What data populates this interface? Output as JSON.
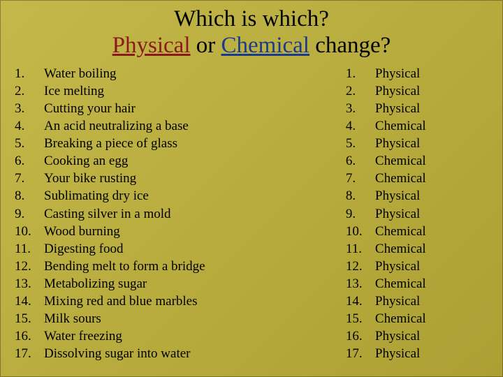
{
  "title": {
    "line1": "Which is which?",
    "physical": "Physical",
    "or": " or ",
    "chemical": "Chemical",
    "change": " change?"
  },
  "left_items": [
    {
      "n": "1.",
      "t": "Water boiling"
    },
    {
      "n": "2.",
      "t": "Ice melting"
    },
    {
      "n": "3.",
      "t": "Cutting your hair"
    },
    {
      "n": "4.",
      "t": "An acid neutralizing a base"
    },
    {
      "n": "5.",
      "t": "Breaking a piece of glass"
    },
    {
      "n": "6.",
      "t": "Cooking an egg"
    },
    {
      "n": "7.",
      "t": "Your bike rusting"
    },
    {
      "n": "8.",
      "t": "Sublimating dry ice"
    },
    {
      "n": "9.",
      "t": "Casting silver in a mold"
    },
    {
      "n": "10.",
      "t": "Wood burning"
    },
    {
      "n": "11.",
      "t": "Digesting food"
    },
    {
      "n": "12.",
      "t": "Bending melt to form a bridge"
    },
    {
      "n": "13.",
      "t": "Metabolizing sugar"
    },
    {
      "n": "14.",
      "t": "Mixing red and blue marbles"
    },
    {
      "n": "15.",
      "t": "Milk sours"
    },
    {
      "n": "16.",
      "t": "Water freezing"
    },
    {
      "n": "17.",
      "t": "Dissolving sugar into water"
    }
  ],
  "right_items": [
    {
      "n": "1.",
      "t": "Physical"
    },
    {
      "n": "2.",
      "t": "Physical"
    },
    {
      "n": "3.",
      "t": "Physical"
    },
    {
      "n": "4.",
      "t": "Chemical"
    },
    {
      "n": "5.",
      "t": "Physical"
    },
    {
      "n": "6.",
      "t": "Chemical"
    },
    {
      "n": "7.",
      "t": "Chemical"
    },
    {
      "n": "8.",
      "t": "Physical"
    },
    {
      "n": "9.",
      "t": "Physical"
    },
    {
      "n": "10.",
      "t": "Chemical"
    },
    {
      "n": "11.",
      "t": "Chemical"
    },
    {
      "n": "12.",
      "t": "Physical"
    },
    {
      "n": "13.",
      "t": "Chemical"
    },
    {
      "n": "14.",
      "t": "Physical"
    },
    {
      "n": "15.",
      "t": "Chemical"
    },
    {
      "n": "16.",
      "t": "Physical"
    },
    {
      "n": "17.",
      "t": "Physical"
    }
  ],
  "colors": {
    "bg_start": "#c4b84a",
    "bg_end": "#aca034",
    "physical_color": "#8b1a1a",
    "chemical_color": "#1a3a8b",
    "text_color": "#000000"
  },
  "fonts": {
    "family": "Times New Roman",
    "title_size_pt": 25,
    "body_size_pt": 14
  }
}
